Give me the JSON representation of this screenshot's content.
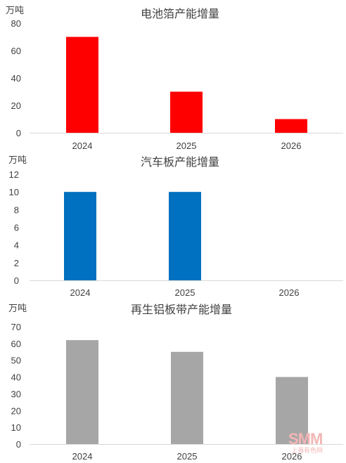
{
  "chart_data": [
    {
      "type": "bar",
      "title": "电池箔产能增量",
      "unit": "万吨",
      "categories": [
        "2024",
        "2025",
        "2026"
      ],
      "values": [
        70,
        30,
        10
      ],
      "ylim": [
        0,
        80
      ],
      "yticks": [
        0,
        20,
        40,
        60,
        80
      ],
      "color": "#ff0000",
      "grid": false
    },
    {
      "type": "bar",
      "title": "汽车板产能增量",
      "unit": "万吨",
      "categories": [
        "2024",
        "2025",
        "2026"
      ],
      "values": [
        10,
        10,
        0
      ],
      "ylim": [
        0,
        12
      ],
      "yticks": [
        0,
        2,
        4,
        6,
        8,
        10,
        12
      ],
      "color": "#0070c0",
      "grid": false
    },
    {
      "type": "bar",
      "title": "再生铝板带产能增量",
      "unit": "万吨",
      "categories": [
        "2024",
        "2025",
        "2026"
      ],
      "values": [
        62,
        55,
        40
      ],
      "ylim": [
        0,
        70
      ],
      "yticks": [
        0,
        10,
        20,
        30,
        40,
        50,
        60,
        70
      ],
      "color": "#a6a6a6",
      "grid": false
    }
  ],
  "watermark": {
    "logo_text": "SMM",
    "sub_text": "上海有色网",
    "color": "#f3b5b5"
  }
}
